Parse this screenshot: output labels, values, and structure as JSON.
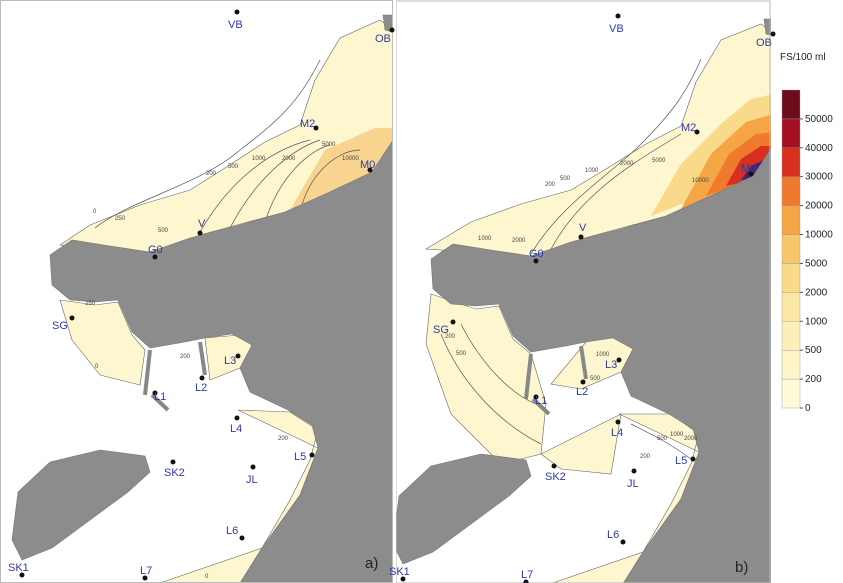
{
  "panels": [
    {
      "label": "a)",
      "stations": [
        "VB",
        "OB",
        "M2",
        "M0",
        "V",
        "G0",
        "SG",
        "L1",
        "L2",
        "L3",
        "L4",
        "L5",
        "JL",
        "SK2",
        "L6",
        "L7",
        "SK1"
      ],
      "contour_labels": [
        "0",
        "250",
        "500",
        "200",
        "500",
        "1000",
        "2000",
        "5000",
        "10000",
        "250",
        "0",
        "200",
        "200",
        "0"
      ]
    },
    {
      "label": "b)",
      "stations": [
        "VB",
        "OB",
        "M2",
        "M0",
        "V",
        "G0",
        "SG",
        "L1",
        "L2",
        "L3",
        "L4",
        "L5",
        "JL",
        "SK2",
        "L6",
        "L7",
        "SK1"
      ],
      "contour_labels": [
        "200",
        "500",
        "1000",
        "2000",
        "5000",
        "10000",
        "1000",
        "2000",
        "200",
        "500",
        "1000",
        "500",
        "200",
        "500",
        "1000",
        "2000"
      ]
    }
  ],
  "legend": {
    "title": "FS/100 ml",
    "ticks": [
      0,
      200,
      500,
      1000,
      2000,
      5000,
      10000,
      20000,
      30000,
      40000,
      50000
    ],
    "colors": [
      "#fffbd8",
      "#fdf5c8",
      "#fcefba",
      "#fbe6a4",
      "#f9d98a",
      "#f7c56a",
      "#f4a646",
      "#ef7a2e",
      "#d7301f",
      "#a50f24",
      "#6e0b1c"
    ]
  }
}
